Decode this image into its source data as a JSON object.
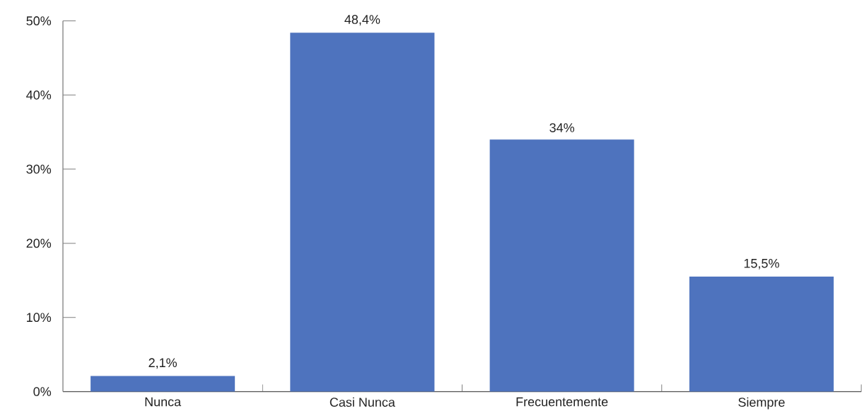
{
  "chart_data": {
    "type": "bar",
    "categories": [
      "Nunca",
      "Casi Nunca",
      "Frecuentemente",
      "Siempre"
    ],
    "values": [
      2.1,
      48.4,
      34,
      15.5
    ],
    "color": "#4e73be",
    "value_labels": [
      "2,1%",
      "48,4%",
      "34%",
      "15,5%"
    ],
    "ylim": [
      0,
      50
    ],
    "yticks": [
      {
        "value": 0,
        "label": "0%"
      },
      {
        "value": 10,
        "label": "10%"
      },
      {
        "value": 20,
        "label": "20%"
      },
      {
        "value": 30,
        "label": "30%"
      },
      {
        "value": 40,
        "label": "40%"
      },
      {
        "value": 50,
        "label": "50%"
      }
    ]
  }
}
